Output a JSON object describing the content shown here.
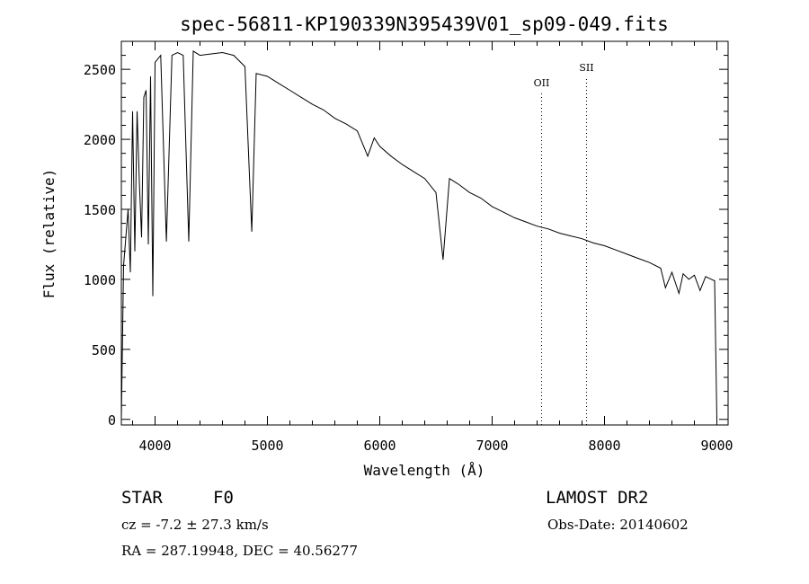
{
  "chart_data": {
    "type": "line",
    "title": "spec-56811-KP190339N395439V01_sp09-049.fits",
    "xlabel": "Wavelength (Å)",
    "ylabel": "Flux (relative)",
    "xlim": [
      3700,
      9100
    ],
    "ylim": [
      -40,
      2700
    ],
    "x_ticks": [
      4000,
      5000,
      6000,
      7000,
      8000,
      9000
    ],
    "y_ticks": [
      0,
      500,
      1000,
      1500,
      2000,
      2500
    ],
    "grid": false,
    "series": [
      {
        "x": [
          3700,
          3720,
          3740,
          3760,
          3780,
          3800,
          3820,
          3840,
          3860,
          3880,
          3900,
          3920,
          3940,
          3960,
          3980,
          4000,
          4050,
          4101,
          4150,
          4200,
          4250,
          4300,
          4340,
          4400,
          4500,
          4600,
          4700,
          4800,
          4861,
          4900,
          5000,
          5100,
          5200,
          5300,
          5400,
          5500,
          5600,
          5700,
          5800,
          5893,
          5950,
          6000,
          6100,
          6200,
          6300,
          6400,
          6500,
          6563,
          6620,
          6700,
          6800,
          6900,
          7000,
          7100,
          7200,
          7300,
          7400,
          7500,
          7600,
          7700,
          7800,
          7900,
          8000,
          8100,
          8200,
          8300,
          8400,
          8500,
          8542,
          8600,
          8662,
          8700,
          8750,
          8800,
          8850,
          8900,
          8950,
          8980,
          9000
        ],
        "y": [
          0,
          1100,
          1300,
          1500,
          1050,
          2200,
          1200,
          2200,
          1700,
          1300,
          2300,
          2350,
          1250,
          2450,
          880,
          2550,
          2600,
          1270,
          2600,
          2620,
          2600,
          1270,
          2630,
          2600,
          2610,
          2620,
          2600,
          2520,
          1340,
          2470,
          2450,
          2400,
          2350,
          2300,
          2250,
          2210,
          2150,
          2110,
          2060,
          1880,
          2010,
          1950,
          1880,
          1820,
          1770,
          1720,
          1620,
          1140,
          1720,
          1680,
          1620,
          1580,
          1520,
          1480,
          1440,
          1410,
          1380,
          1360,
          1330,
          1310,
          1290,
          1260,
          1240,
          1210,
          1180,
          1150,
          1120,
          1080,
          940,
          1050,
          900,
          1040,
          1000,
          1030,
          920,
          1020,
          1000,
          990,
          0
        ]
      }
    ],
    "annotations": [
      {
        "label": "OII",
        "x": 7440
      },
      {
        "label": "SII",
        "x": 7840
      }
    ]
  },
  "info": {
    "object_class": "STAR",
    "subclass": "F0",
    "survey": "LAMOST DR2",
    "redshift": "cz = -7.2 ± 27.3 km/s",
    "obs_date": "Obs-Date: 20140602",
    "coords": "RA = 287.19948, DEC =  40.56277"
  }
}
